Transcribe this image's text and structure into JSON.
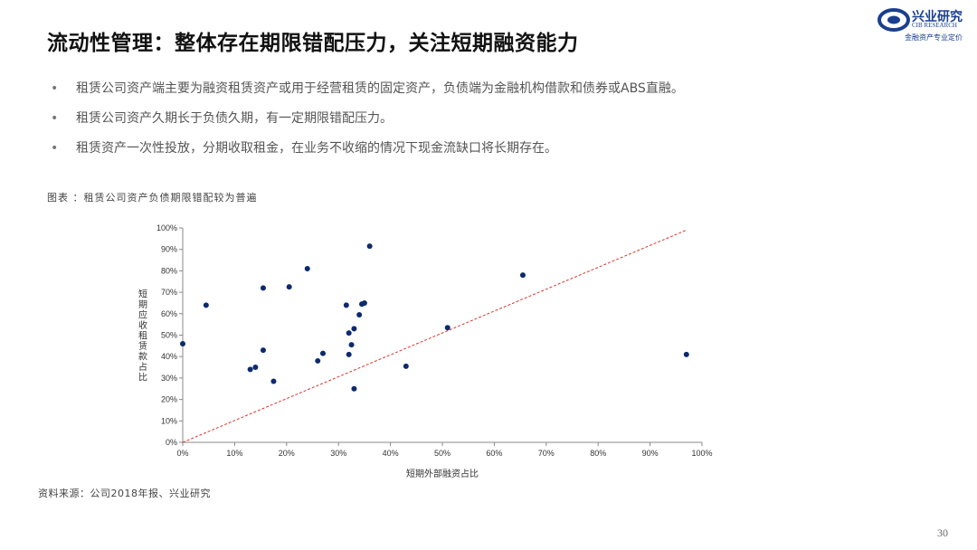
{
  "header": {
    "title": "流动性管理：整体存在期限错配压力，关注短期融资能力"
  },
  "logo": {
    "name": "兴业研究",
    "en": "CIB RESEARCH",
    "tagline": "金融资产专业定价"
  },
  "bullets": [
    "租赁公司资产端主要为融资租赁资产或用于经营租赁的固定资产，负债端为金融机构借款和债券或ABS直融。",
    "租赁公司资产久期长于负债久期，有一定期限错配压力。",
    "租赁资产一次性投放，分期收取租金，在业务不收缩的情况下现金流缺口将长期存在。"
  ],
  "bullet_marker": "•",
  "figure_caption": "图表 ：租赁公司资产负债期限错配较为普遍",
  "source": "资料来源：公司2018年报、兴业研究",
  "page_number": "30",
  "colors": {
    "point": "#0d2a6e",
    "diagonal": "#d9362b",
    "axis": "#888888"
  },
  "chart_data": {
    "type": "scatter",
    "xlabel": "短期外部融资占比",
    "ylabel": "短期应收租赁款占比",
    "xlim": [
      0,
      100
    ],
    "ylim": [
      0,
      100
    ],
    "x_ticks": [
      "0%",
      "10%",
      "20%",
      "30%",
      "40%",
      "50%",
      "60%",
      "70%",
      "80%",
      "90%",
      "100%"
    ],
    "y_ticks": [
      "0%",
      "10%",
      "20%",
      "30%",
      "40%",
      "50%",
      "60%",
      "70%",
      "80%",
      "90%",
      "100%"
    ],
    "reference_line": {
      "from": [
        0,
        0
      ],
      "to": [
        97,
        99
      ]
    },
    "points": [
      {
        "x": 0,
        "y": 46
      },
      {
        "x": 4.5,
        "y": 64
      },
      {
        "x": 13,
        "y": 34
      },
      {
        "x": 14,
        "y": 35
      },
      {
        "x": 15.5,
        "y": 43
      },
      {
        "x": 15.5,
        "y": 72
      },
      {
        "x": 17.5,
        "y": 28.5
      },
      {
        "x": 20.5,
        "y": 72.5
      },
      {
        "x": 24,
        "y": 81
      },
      {
        "x": 26,
        "y": 38
      },
      {
        "x": 27,
        "y": 41.5
      },
      {
        "x": 31.5,
        "y": 64
      },
      {
        "x": 32,
        "y": 51
      },
      {
        "x": 32,
        "y": 41
      },
      {
        "x": 32.5,
        "y": 45.5
      },
      {
        "x": 33,
        "y": 53
      },
      {
        "x": 33,
        "y": 25
      },
      {
        "x": 34,
        "y": 59.5
      },
      {
        "x": 34.5,
        "y": 64.5
      },
      {
        "x": 35,
        "y": 65
      },
      {
        "x": 36,
        "y": 91.5
      },
      {
        "x": 43,
        "y": 35.5
      },
      {
        "x": 51,
        "y": 53.5
      },
      {
        "x": 65.5,
        "y": 78
      },
      {
        "x": 97,
        "y": 41
      }
    ]
  }
}
